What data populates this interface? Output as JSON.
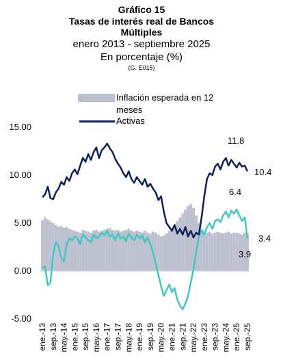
{
  "chart_data": {
    "type": "line",
    "kicker": "Gráfico 15",
    "title": "Tasas de interés real de Bancos Múltiples",
    "subtitle": "enero 2013 - septiembre 2025",
    "unit_note": "En porcentaje (%)",
    "source_code": "(G. E015)",
    "categories": [
      "ene.-13",
      null,
      null,
      null,
      "sep.-13",
      null,
      null,
      null,
      "may.-14",
      null,
      null,
      null,
      "ene.-15",
      null,
      null,
      null,
      "sep.-15",
      null,
      null,
      null,
      "may.-16",
      null,
      null,
      null,
      "ene.-17",
      null,
      null,
      null,
      "sep.-17",
      null,
      null,
      null,
      "may.-18",
      null,
      null,
      null,
      "ene.-19",
      null,
      null,
      null,
      "sep.-19",
      null,
      null,
      null,
      "may.-20",
      null,
      null,
      null,
      "ene.-21",
      null,
      null,
      null,
      "sep.-21",
      null,
      null,
      null,
      "may.-22",
      null,
      null,
      null,
      "ene.-23",
      null,
      null,
      null,
      "sep.-23",
      null,
      null,
      null,
      "may.-24",
      null,
      null,
      null,
      "ene.-25",
      null,
      null,
      null,
      "sep.-25"
    ],
    "series": [
      {
        "name": "Inflación esperada en 12 meses",
        "type": "bar",
        "color": "#bcc0cf",
        "values": [
          5.3,
          5.6,
          5.4,
          5.2,
          5.0,
          4.8,
          4.6,
          4.7,
          4.5,
          4.6,
          4.4,
          4.3,
          4.2,
          4.1,
          4.0,
          4.3,
          4.2,
          4.1,
          4.0,
          4.2,
          4.3,
          4.1,
          4.2,
          4.3,
          4.4,
          4.5,
          4.3,
          4.2,
          4.3,
          4.1,
          4.2,
          4.3,
          4.4,
          4.2,
          4.1,
          4.2,
          4.1,
          4.0,
          4.2,
          4.0,
          3.9,
          4.1,
          4.0,
          3.8,
          3.6,
          3.7,
          3.9,
          4.2,
          4.4,
          4.8,
          5.2,
          5.6,
          6.0,
          6.4,
          6.8,
          7.0,
          6.6,
          5.8,
          5.0,
          4.4,
          4.2,
          4.0,
          4.1,
          3.9,
          4.0,
          4.1,
          4.0,
          3.9,
          4.0,
          4.1,
          3.9,
          4.0,
          4.0,
          3.9,
          3.8,
          4.0,
          3.9
        ]
      },
      {
        "name": "Activas",
        "type": "line",
        "color": "#0f1f5c",
        "values": [
          7.7,
          8.0,
          8.8,
          7.6,
          7.5,
          8.2,
          8.6,
          9.3,
          9.0,
          9.8,
          9.4,
          10.2,
          10.6,
          10.1,
          11.0,
          11.8,
          11.4,
          12.2,
          11.6,
          12.4,
          12.9,
          11.8,
          12.6,
          12.9,
          13.3,
          12.8,
          12.4,
          11.7,
          11.2,
          10.8,
          10.2,
          9.8,
          10.4,
          9.6,
          9.2,
          9.8,
          9.4,
          9.0,
          9.6,
          8.8,
          9.1,
          8.6,
          8.2,
          7.4,
          7.8,
          6.2,
          5.0,
          4.6,
          4.2,
          4.8,
          3.9,
          4.4,
          3.8,
          4.6,
          3.6,
          4.2,
          3.5,
          4.0,
          3.8,
          5.6,
          7.8,
          9.6,
          10.2,
          10.0,
          10.9,
          11.2,
          10.6,
          11.4,
          11.8,
          11.0,
          11.6,
          11.2,
          10.8,
          11.3,
          10.9,
          11.0,
          10.4
        ]
      },
      {
        "type": "line",
        "color": "#3dc9c2",
        "values": [
          0.3,
          0.5,
          -1.5,
          -1.2,
          1.8,
          3.0,
          2.6,
          1.4,
          1.0,
          2.8,
          3.4,
          3.2,
          3.6,
          3.4,
          2.8,
          3.8,
          3.5,
          3.2,
          3.0,
          3.8,
          3.4,
          3.6,
          4.0,
          3.7,
          4.2,
          3.6,
          3.8,
          3.2,
          3.9,
          3.4,
          3.6,
          3.1,
          3.9,
          3.5,
          3.2,
          3.8,
          3.4,
          3.7,
          3.0,
          3.5,
          2.8,
          2.0,
          0.8,
          -0.4,
          -1.6,
          -2.6,
          -2.0,
          -1.4,
          -2.2,
          -1.8,
          -3.0,
          -3.6,
          -4.0,
          -3.4,
          -2.6,
          -1.2,
          0.2,
          2.0,
          3.6,
          4.2,
          3.8,
          4.6,
          5.0,
          4.4,
          5.2,
          5.4,
          5.1,
          5.8,
          6.2,
          5.6,
          6.3,
          6.0,
          6.4,
          5.8,
          5.2,
          5.6,
          3.4
        ]
      }
    ],
    "annotations": [
      "11.8",
      "10.4",
      "6.4",
      "3.4",
      "3.9"
    ],
    "ylim": [
      -5,
      15
    ],
    "yticks": [
      {
        "value": -5,
        "label": "-5.00"
      },
      {
        "value": 0,
        "label": "0.00"
      },
      {
        "value": 5,
        "label": "5.00"
      },
      {
        "value": 10,
        "label": "10.00"
      },
      {
        "value": 15,
        "label": "15.00"
      }
    ],
    "grid": false
  }
}
